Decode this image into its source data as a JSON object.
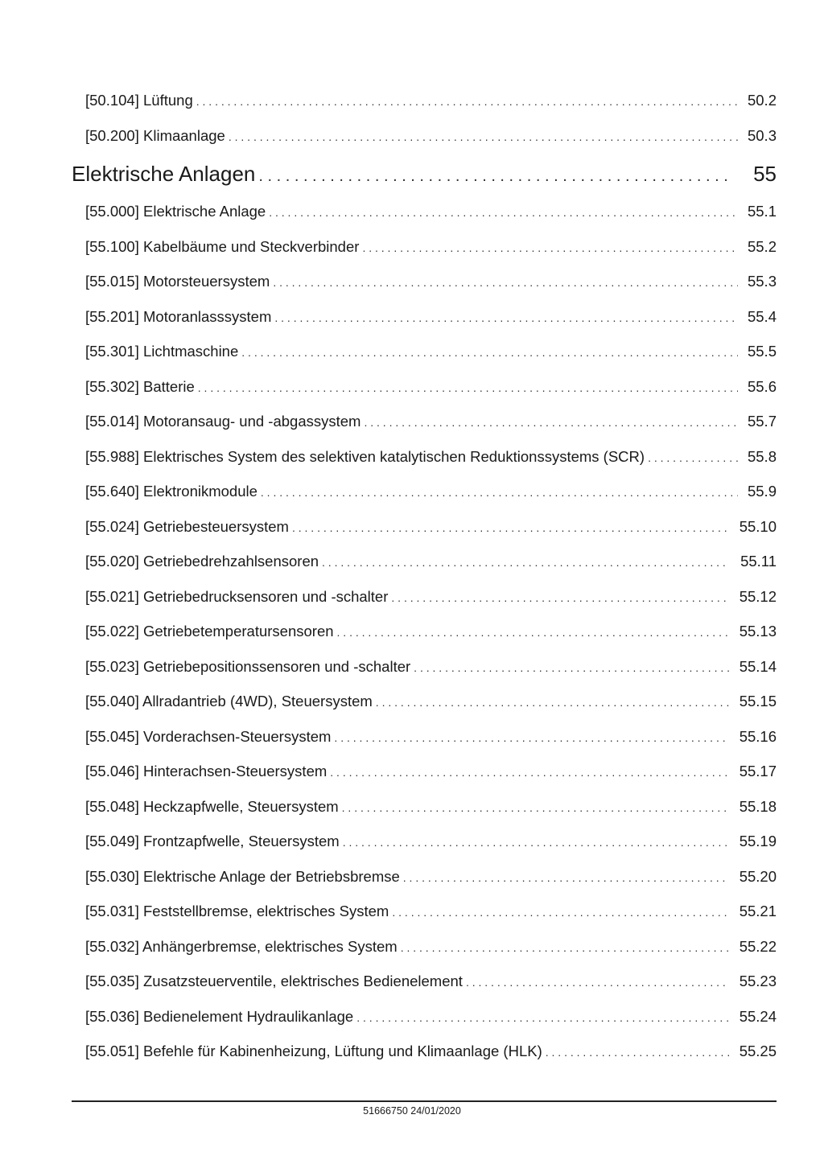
{
  "toc": [
    {
      "title": "[50.104] Lüftung",
      "page": "50.2"
    },
    {
      "title": "[50.200] Klimaanlage",
      "page": "50.3"
    },
    {
      "title": "Elektrische Anlagen",
      "page": "55",
      "heading": true
    },
    {
      "title": "[55.000] Elektrische Anlage",
      "page": "55.1"
    },
    {
      "title": "[55.100] Kabelbäume und Steckverbinder",
      "page": "55.2"
    },
    {
      "title": "[55.015] Motorsteuersystem",
      "page": "55.3"
    },
    {
      "title": "[55.201] Motoranlasssystem",
      "page": "55.4"
    },
    {
      "title": "[55.301] Lichtmaschine",
      "page": "55.5"
    },
    {
      "title": "[55.302] Batterie",
      "page": "55.6"
    },
    {
      "title": "[55.014] Motoransaug- und -abgassystem",
      "page": "55.7"
    },
    {
      "title": "[55.988] Elektrisches System des selektiven katalytischen Reduktionssystems (SCR)",
      "page": "55.8"
    },
    {
      "title": "[55.640] Elektronikmodule",
      "page": "55.9"
    },
    {
      "title": "[55.024] Getriebesteuersystem",
      "page": "55.10"
    },
    {
      "title": "[55.020] Getriebedrehzahlsensoren",
      "page": "55.11"
    },
    {
      "title": "[55.021] Getriebedrucksensoren und -schalter",
      "page": "55.12"
    },
    {
      "title": "[55.022] Getriebetemperatursensoren",
      "page": "55.13"
    },
    {
      "title": "[55.023] Getriebepositionssensoren und -schalter",
      "page": "55.14"
    },
    {
      "title": "[55.040] Allradantrieb (4WD), Steuersystem",
      "page": "55.15"
    },
    {
      "title": "[55.045] Vorderachsen-Steuersystem",
      "page": "55.16"
    },
    {
      "title": "[55.046] Hinterachsen-Steuersystem",
      "page": "55.17"
    },
    {
      "title": "[55.048] Heckzapfwelle, Steuersystem",
      "page": "55.18"
    },
    {
      "title": "[55.049] Frontzapfwelle, Steuersystem",
      "page": "55.19"
    },
    {
      "title": "[55.030] Elektrische Anlage der Betriebsbremse",
      "page": "55.20"
    },
    {
      "title": "[55.031] Feststellbremse, elektrisches System",
      "page": "55.21"
    },
    {
      "title": "[55.032] Anhängerbremse, elektrisches System",
      "page": "55.22"
    },
    {
      "title": "[55.035] Zusatzsteuerventile, elektrisches Bedienelement",
      "page": "55.23"
    },
    {
      "title": "[55.036] Bedienelement Hydraulikanlage",
      "page": "55.24"
    },
    {
      "title": "[55.051] Befehle für Kabinenheizung, Lüftung und Klimaanlage (HLK)",
      "page": "55.25"
    }
  ],
  "footer": {
    "text": "51666750 24/01/2020"
  }
}
